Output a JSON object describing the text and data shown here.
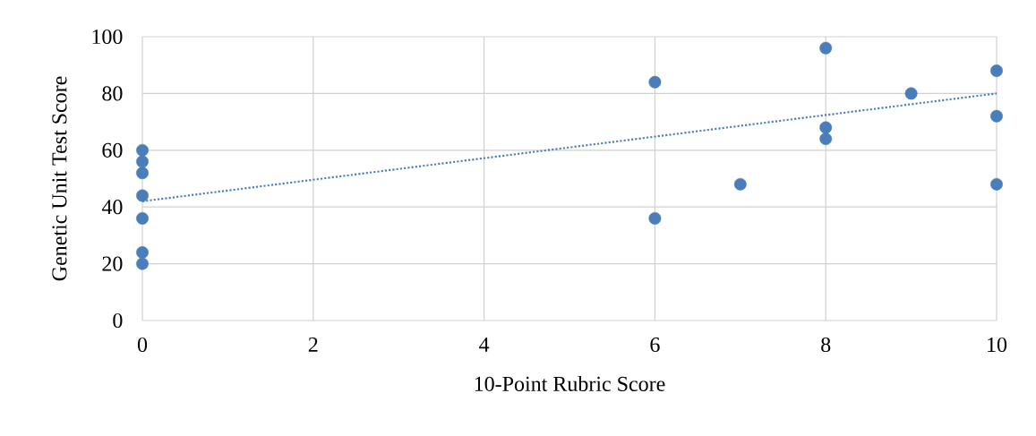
{
  "chart_data": {
    "type": "scatter",
    "xlabel": "10-Point Rubric Score",
    "ylabel": "Genetic Unit Test Score",
    "xlim": [
      0,
      10
    ],
    "ylim": [
      0,
      100
    ],
    "xticks": [
      0,
      2,
      4,
      6,
      8,
      10
    ],
    "yticks": [
      0,
      20,
      40,
      60,
      80,
      100
    ],
    "grid": true,
    "series": [
      {
        "color": "#4a7ebb",
        "marker": "circle",
        "x": [
          0,
          0,
          0,
          0,
          0,
          0,
          0,
          6,
          6,
          7,
          8,
          8,
          8,
          9,
          10,
          10,
          10
        ],
        "values": [
          60,
          56,
          52,
          44,
          36,
          24,
          20,
          84,
          36,
          48,
          96,
          68,
          64,
          80,
          88,
          72,
          48
        ]
      },
      {
        "type": "line",
        "color": "#4a7ebb",
        "marker": "none",
        "line_style": "dotted",
        "x": [
          0,
          10
        ],
        "values": [
          42,
          80
        ]
      }
    ]
  }
}
